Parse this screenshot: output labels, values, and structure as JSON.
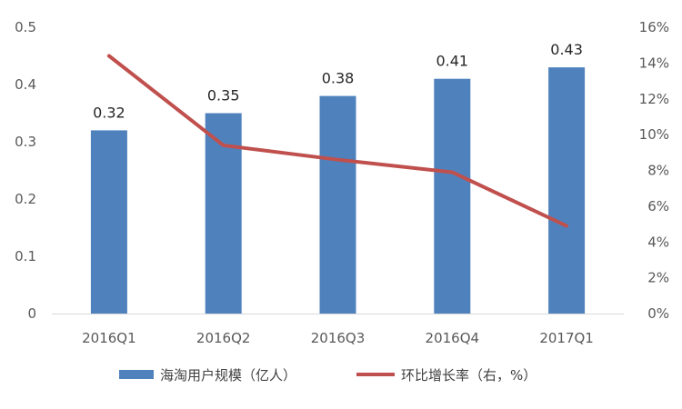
{
  "chart_data": {
    "type": "bar",
    "categories": [
      "2016Q1",
      "2016Q2",
      "2016Q3",
      "2016Q4",
      "2017Q1"
    ],
    "series": [
      {
        "name": "海淘用户规模（亿人）",
        "type": "bar",
        "axis": "left",
        "color": "#4F81BD",
        "values": [
          0.32,
          0.35,
          0.38,
          0.41,
          0.43
        ],
        "data_labels": [
          "0.32",
          "0.35",
          "0.38",
          "0.41",
          "0.43"
        ]
      },
      {
        "name": "环比增长率（右，%）",
        "type": "line",
        "axis": "right",
        "color": "#C0504D",
        "values": [
          14.4,
          9.4,
          8.6,
          7.9,
          4.9
        ]
      }
    ],
    "y_left": {
      "min": 0,
      "max": 0.5,
      "ticks": [
        0,
        0.1,
        0.2,
        0.3,
        0.4,
        0.5
      ],
      "tick_labels": [
        "0",
        "0.1",
        "0.2",
        "0.3",
        "0.4",
        "0.5"
      ]
    },
    "y_right": {
      "min": 0,
      "max": 16,
      "ticks": [
        0,
        2,
        4,
        6,
        8,
        10,
        12,
        14,
        16
      ],
      "tick_labels": [
        "0%",
        "2%",
        "4%",
        "6%",
        "8%",
        "10%",
        "12%",
        "14%",
        "16%"
      ]
    },
    "grid": false,
    "legend": {
      "position": "bottom",
      "entries": [
        "海淘用户规模（亿人）",
        "环比增长率（右，%）"
      ]
    }
  }
}
